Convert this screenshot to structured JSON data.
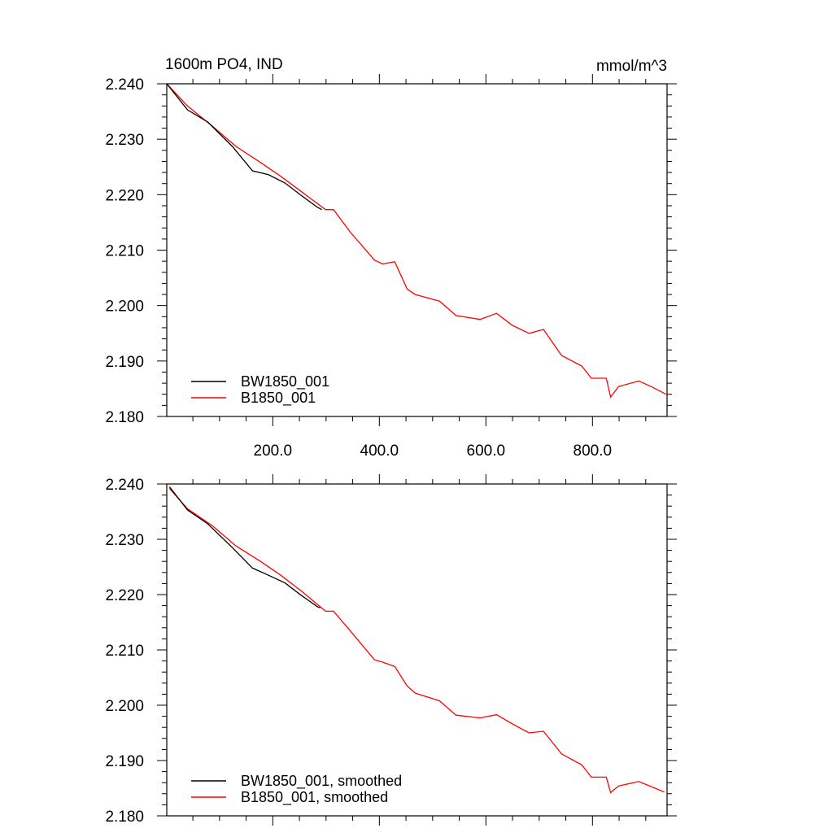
{
  "chart_data": [
    {
      "type": "line",
      "title": "1600m PO4, IND",
      "units": "mmol/m^3",
      "xlim": [
        1,
        940
      ],
      "ylim": [
        2.18,
        2.24
      ],
      "x_ticks": [
        200,
        400,
        600,
        800
      ],
      "x_tick_labels": [
        "200.0",
        "400.0",
        "600.0",
        "800.0"
      ],
      "y_ticks": [
        2.18,
        2.19,
        2.2,
        2.21,
        2.22,
        2.23,
        2.24
      ],
      "y_tick_labels": [
        "2.180",
        "2.190",
        "2.200",
        "2.210",
        "2.220",
        "2.230",
        "2.240"
      ],
      "legend_position": "bottom-left",
      "series": [
        {
          "name": "BW1850_001",
          "color": "#000000",
          "x": [
            1,
            40,
            78,
            124,
            162,
            192,
            223,
            253,
            284,
            292
          ],
          "y": [
            2.24,
            2.2353,
            2.2331,
            2.2287,
            2.2243,
            2.2236,
            2.2221,
            2.2199,
            2.2177,
            2.2173
          ]
        },
        {
          "name": "B1850_001",
          "color": "#ff0000",
          "x": [
            1,
            40,
            86,
            131,
            177,
            215,
            253,
            299,
            314,
            345,
            391,
            406,
            429,
            452,
            467,
            513,
            544,
            589,
            620,
            650,
            681,
            708,
            742,
            780,
            798,
            826,
            834,
            849,
            887,
            910,
            938
          ],
          "y": [
            2.24,
            2.236,
            2.2324,
            2.2287,
            2.2258,
            2.2233,
            2.2206,
            2.2173,
            2.2173,
            2.2133,
            2.2082,
            2.2075,
            2.2079,
            2.203,
            2.202,
            2.2008,
            2.1982,
            2.1975,
            2.1986,
            2.1964,
            2.195,
            2.1957,
            2.191,
            2.1891,
            2.1869,
            2.1869,
            2.1835,
            2.1854,
            2.1864,
            2.1854,
            2.184
          ]
        }
      ]
    },
    {
      "type": "line",
      "xlim": [
        1,
        940
      ],
      "ylim": [
        2.18,
        2.24
      ],
      "y_ticks": [
        2.18,
        2.19,
        2.2,
        2.21,
        2.22,
        2.23,
        2.24
      ],
      "y_tick_labels": [
        "2.180",
        "2.190",
        "2.200",
        "2.210",
        "2.220",
        "2.230",
        "2.240"
      ],
      "legend_position": "bottom-left",
      "series": [
        {
          "name": "BW1850_001, smoothed",
          "color": "#000000",
          "x": [
            6,
            40,
            78,
            124,
            162,
            192,
            223,
            253,
            284,
            289
          ],
          "y": [
            2.2395,
            2.2353,
            2.2328,
            2.2285,
            2.2248,
            2.2235,
            2.2221,
            2.2199,
            2.2178,
            2.2176
          ]
        },
        {
          "name": "B1850_001, smoothed",
          "color": "#ff0000",
          "x": [
            6,
            40,
            86,
            131,
            177,
            215,
            253,
            299,
            314,
            345,
            391,
            406,
            429,
            452,
            467,
            513,
            544,
            589,
            620,
            650,
            681,
            708,
            742,
            780,
            798,
            826,
            834,
            849,
            887,
            910,
            935
          ],
          "y": [
            2.2392,
            2.2355,
            2.2325,
            2.2288,
            2.226,
            2.2235,
            2.2207,
            2.217,
            2.217,
            2.2135,
            2.2082,
            2.2078,
            2.207,
            2.2035,
            2.2022,
            2.2008,
            2.1982,
            2.1977,
            2.1983,
            2.1966,
            2.195,
            2.1953,
            2.1912,
            2.1892,
            2.187,
            2.187,
            2.1842,
            2.1854,
            2.1862,
            2.1853,
            2.1843
          ]
        }
      ]
    }
  ]
}
